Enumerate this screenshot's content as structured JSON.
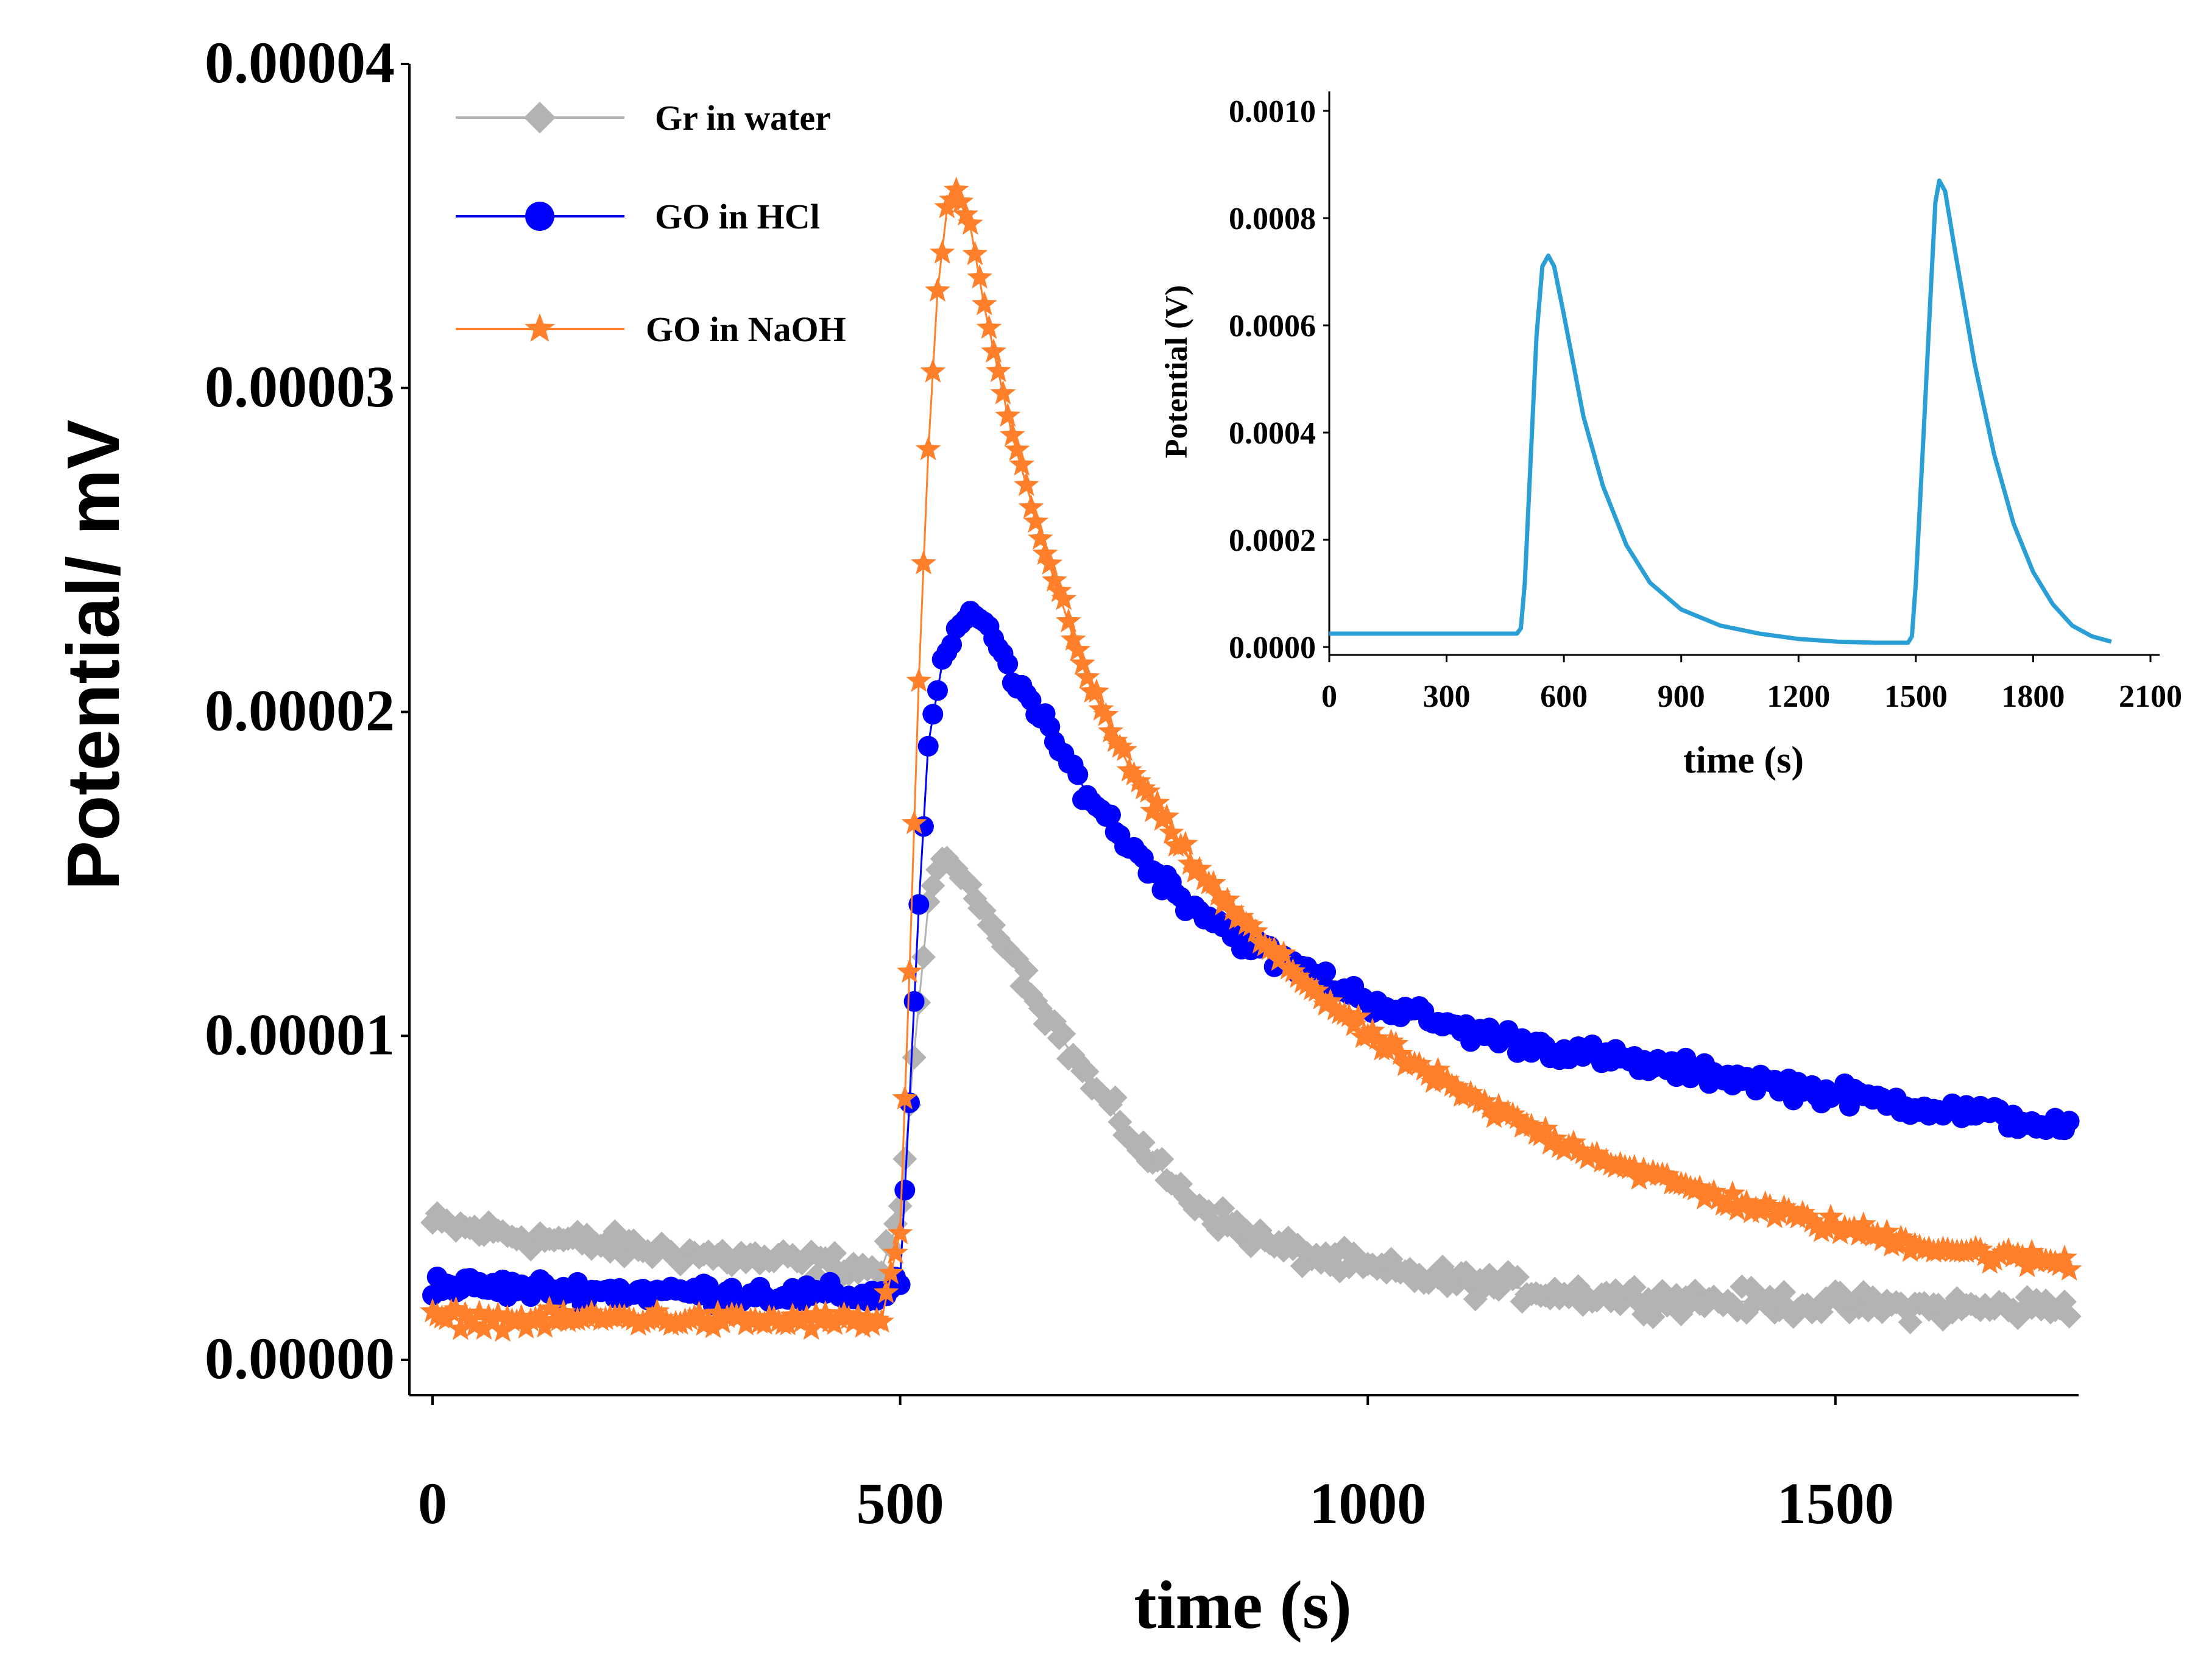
{
  "chart_data": [
    {
      "type": "scatter",
      "role": "main",
      "xlabel": "time (s)",
      "ylabel": "Potential/ mV",
      "xlim": [
        0,
        1760
      ],
      "ylim": [
        0,
        4e-05
      ],
      "xticks": [
        0,
        500,
        1000,
        1500
      ],
      "xtick_labels": [
        "0",
        "500",
        "1000",
        "1500"
      ],
      "yticks": [
        0,
        1e-05,
        2e-05,
        3e-05,
        4e-05
      ],
      "ytick_labels": [
        "0.00000",
        "0.00001",
        "0.00002",
        "0.00003",
        "0.00004"
      ],
      "grid": false,
      "legend": "top-left",
      "series": [
        {
          "name": "Gr in water",
          "color": "#b3b3b3",
          "marker": "diamond",
          "x": [
            0,
            100,
            200,
            300,
            400,
            480,
            500,
            515,
            530,
            545,
            560,
            575,
            590,
            620,
            660,
            700,
            750,
            800,
            850,
            900,
            1000,
            1100,
            1200,
            1300,
            1400,
            1500,
            1600,
            1700,
            1750
          ],
          "y": [
            4.2e-06,
            3.8e-06,
            3.5e-06,
            3.2e-06,
            3e-06,
            2.8e-06,
            4.5e-06,
            9.5e-06,
            1.4e-05,
            1.55e-05,
            1.52e-05,
            1.45e-05,
            1.38e-05,
            1.25e-05,
            1.05e-05,
            8.7e-06,
            6.8e-06,
            5.2e-06,
            4.2e-06,
            3.5e-06,
            2.8e-06,
            2.4e-06,
            2.1e-06,
            1.9e-06,
            1.8e-06,
            1.7e-06,
            1.6e-06,
            1.6e-06,
            1.7e-06
          ]
        },
        {
          "name": "GO in HCl",
          "color": "#0000ff",
          "marker": "circle",
          "x": [
            0,
            100,
            200,
            300,
            400,
            480,
            500,
            510,
            520,
            530,
            545,
            560,
            575,
            590,
            620,
            660,
            700,
            750,
            800,
            850,
            900,
            1000,
            1100,
            1200,
            1300,
            1400,
            1500,
            1600,
            1700,
            1750
          ],
          "y": [
            2.3e-06,
            2.2e-06,
            2.1e-06,
            2.1e-06,
            2e-06,
            2e-06,
            2.5e-06,
            8e-06,
            1.4e-05,
            1.9e-05,
            2.15e-05,
            2.25e-05,
            2.3e-05,
            2.28e-05,
            2.12e-05,
            1.93e-05,
            1.75e-05,
            1.57e-05,
            1.43e-05,
            1.33e-05,
            1.24e-05,
            1.11e-05,
            1.02e-05,
            9.6e-06,
            9.1e-06,
            8.7e-06,
            8.2e-06,
            7.8e-06,
            7.4e-06,
            7.1e-06
          ]
        },
        {
          "name": "GO in NaOH",
          "color": "#ff7f2a",
          "marker": "star",
          "x": [
            0,
            100,
            200,
            300,
            400,
            480,
            500,
            510,
            520,
            530,
            540,
            550,
            560,
            575,
            590,
            620,
            660,
            700,
            750,
            800,
            850,
            900,
            1000,
            1100,
            1200,
            1300,
            1400,
            1500,
            1600,
            1700,
            1750
          ],
          "y": [
            1.3e-06,
            1.2e-06,
            1.3e-06,
            1.2e-06,
            1.2e-06,
            1.2e-06,
            4e-06,
            1.2e-05,
            2.1e-05,
            2.8e-05,
            3.3e-05,
            3.55e-05,
            3.6e-05,
            3.5e-05,
            3.25e-05,
            2.85e-05,
            2.45e-05,
            2.1e-05,
            1.8e-05,
            1.58e-05,
            1.4e-05,
            1.25e-05,
            1e-05,
            8.2e-06,
            6.8e-06,
            5.7e-06,
            4.8e-06,
            4.1e-06,
            3.5e-06,
            3.1e-06,
            3e-06
          ]
        }
      ]
    },
    {
      "type": "line",
      "role": "inset",
      "xlabel": "time (s)",
      "ylabel": "Potential (V)",
      "xlim": [
        0,
        2100
      ],
      "ylim": [
        0,
        0.001
      ],
      "xticks": [
        0,
        300,
        600,
        900,
        1200,
        1500,
        1800,
        2100
      ],
      "xtick_labels": [
        "0",
        "300",
        "600",
        "900",
        "1200",
        "1500",
        "1800",
        "2100"
      ],
      "yticks": [
        0,
        0.0002,
        0.0004,
        0.0006,
        0.0008,
        0.001
      ],
      "ytick_labels": [
        "0.0000",
        "0.0002",
        "0.0004",
        "0.0006",
        "0.0008",
        "0.0010"
      ],
      "grid": false,
      "legend": "none",
      "series": [
        {
          "name": "inset",
          "color": "#2a9fd6",
          "x": [
            0,
            200,
            400,
            480,
            490,
            500,
            515,
            530,
            545,
            560,
            575,
            600,
            650,
            700,
            760,
            820,
            900,
            1000,
            1100,
            1200,
            1300,
            1400,
            1480,
            1490,
            1500,
            1520,
            1540,
            1550,
            1560,
            1575,
            1600,
            1650,
            1700,
            1750,
            1800,
            1850,
            1900,
            1950,
            2000
          ],
          "y": [
            2.5e-05,
            2.5e-05,
            2.5e-05,
            2.5e-05,
            3.5e-05,
            0.00012,
            0.00035,
            0.00058,
            0.00071,
            0.00073,
            0.00071,
            0.00062,
            0.00043,
            0.0003,
            0.00019,
            0.00012,
            7e-05,
            4e-05,
            2.5e-05,
            1.5e-05,
            1e-05,
            8e-06,
            8e-06,
            2e-05,
            0.00012,
            0.0004,
            0.00069,
            0.00083,
            0.00087,
            0.00085,
            0.00074,
            0.00053,
            0.00036,
            0.00023,
            0.00014,
            8e-05,
            4e-05,
            2e-05,
            1e-05
          ]
        }
      ]
    }
  ]
}
